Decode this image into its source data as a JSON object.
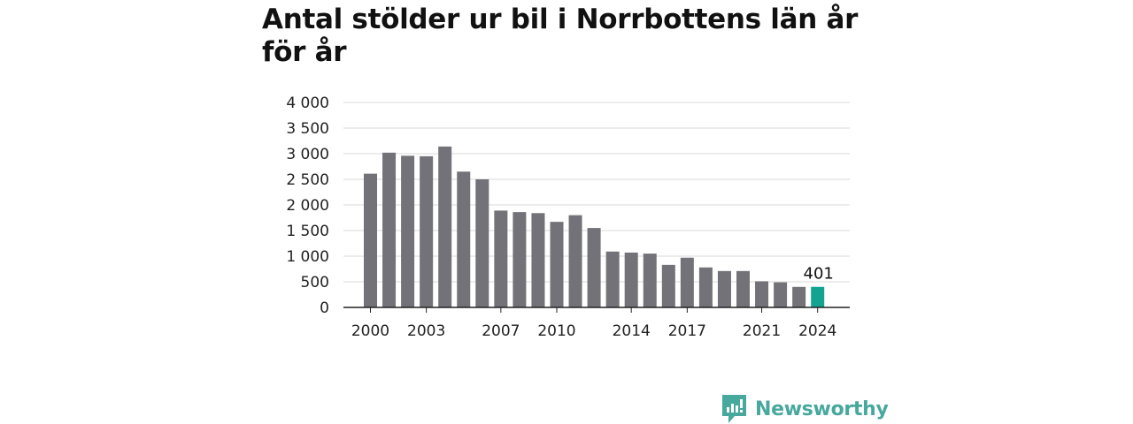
{
  "title": "Antal stölder ur bil i Norrbottens län år för år",
  "brand": {
    "name": "Newsworthy",
    "logo_icon": "newsworthy-logo-icon",
    "color": "#47a89d"
  },
  "colors": {
    "bar": "#737278",
    "highlight": "#12a391",
    "grid": "#d9d9d9",
    "axis": "#222222"
  },
  "chart_data": {
    "type": "bar",
    "title": "Antal stölder ur bil i Norrbottens län år för år",
    "xlabel": "",
    "ylabel": "",
    "categories": [
      "2000",
      "2001",
      "2002",
      "2003",
      "2004",
      "2005",
      "2006",
      "2007",
      "2008",
      "2009",
      "2010",
      "2011",
      "2012",
      "2013",
      "2014",
      "2015",
      "2016",
      "2017",
      "2018",
      "2019",
      "2020",
      "2021",
      "2022",
      "2023",
      "2024"
    ],
    "values": [
      2610,
      3020,
      2960,
      2950,
      3140,
      2650,
      2500,
      1890,
      1860,
      1840,
      1670,
      1800,
      1550,
      1090,
      1070,
      1050,
      830,
      970,
      780,
      710,
      710,
      510,
      490,
      400,
      401
    ],
    "ylim": [
      0,
      4000
    ],
    "yticks": [
      0,
      500,
      1000,
      1500,
      2000,
      2500,
      3000,
      3500,
      4000
    ],
    "ytick_labels": [
      "0",
      "500",
      "1 000",
      "1 500",
      "2 000",
      "2 500",
      "3 000",
      "3 500",
      "4 000"
    ],
    "xtick_labels": [
      "2000",
      "2003",
      "2007",
      "2010",
      "2014",
      "2017",
      "2021",
      "2024"
    ],
    "highlight": {
      "category": "2024",
      "label": "401"
    },
    "grid": true,
    "legend": "none"
  }
}
